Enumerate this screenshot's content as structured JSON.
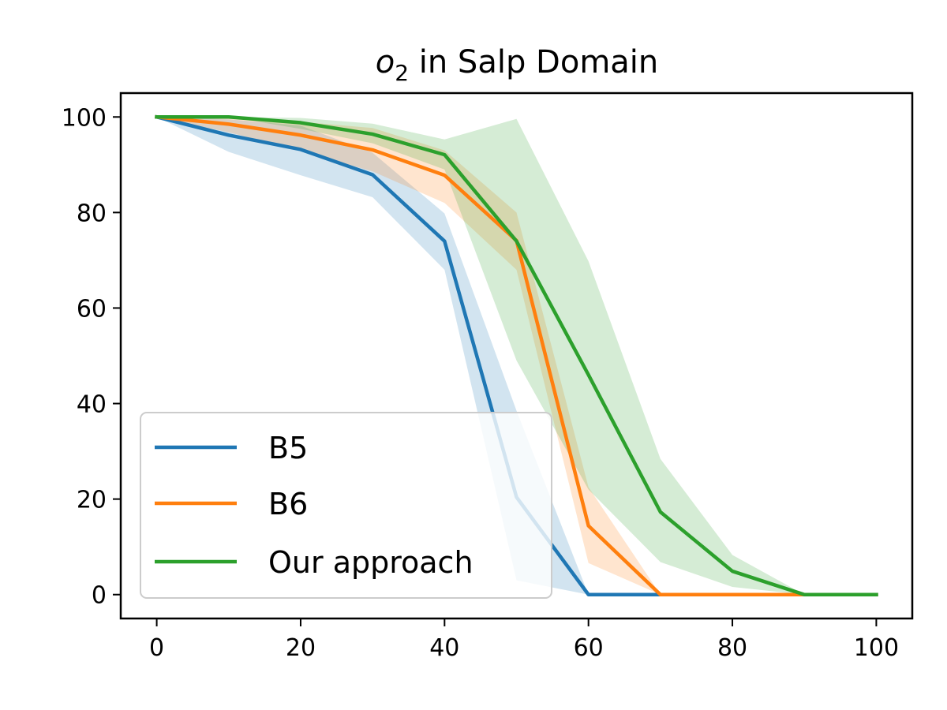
{
  "chart_data": {
    "type": "line",
    "title_main": "o",
    "title_sub": "2",
    "title_rest": " in Salp Domain",
    "xlim": [
      -5,
      105
    ],
    "ylim": [
      -5,
      105
    ],
    "xticks": [
      0,
      20,
      40,
      60,
      80,
      100
    ],
    "yticks": [
      0,
      20,
      40,
      60,
      80,
      100
    ],
    "grid": false,
    "legend_position": "lower-left",
    "series": [
      {
        "name": "B5",
        "color": "#1f77b4",
        "x": [
          0,
          10,
          20,
          30,
          40,
          50,
          60,
          70,
          80,
          90,
          100
        ],
        "y": [
          100,
          96.2,
          93.2,
          87.9,
          74,
          20.4,
          0,
          0,
          0,
          0,
          0
        ],
        "lower": [
          100,
          92.7,
          87.8,
          83.2,
          68,
          3,
          0,
          0,
          0,
          0,
          0
        ],
        "upper": [
          100,
          99.5,
          98.2,
          92.5,
          79.8,
          38.5,
          0,
          0,
          0,
          0,
          0
        ]
      },
      {
        "name": "B6",
        "color": "#ff7f0e",
        "x": [
          0,
          10,
          20,
          30,
          40,
          50,
          60,
          70,
          80,
          90,
          100
        ],
        "y": [
          100,
          98.5,
          96.2,
          93.1,
          87.8,
          74.1,
          14.4,
          0,
          0,
          0,
          0
        ],
        "lower": [
          100,
          96.8,
          92.9,
          88.6,
          82,
          68,
          6.6,
          0,
          0,
          0,
          0
        ],
        "upper": [
          100,
          100,
          99,
          97.7,
          93,
          80,
          22.5,
          0,
          0,
          0,
          0
        ]
      },
      {
        "name": "Our approach",
        "color": "#2ca02c",
        "x": [
          0,
          10,
          20,
          30,
          40,
          50,
          60,
          70,
          80,
          90,
          100
        ],
        "y": [
          100,
          100,
          98.8,
          96.4,
          92.1,
          74,
          46,
          17.3,
          4.9,
          0,
          0
        ],
        "lower": [
          100,
          100,
          97.5,
          94.5,
          89,
          49,
          22,
          6.8,
          1.6,
          0,
          0
        ],
        "upper": [
          100,
          100,
          99.8,
          98.6,
          95.3,
          99.6,
          69.8,
          28.4,
          8.3,
          0,
          0
        ]
      }
    ]
  }
}
